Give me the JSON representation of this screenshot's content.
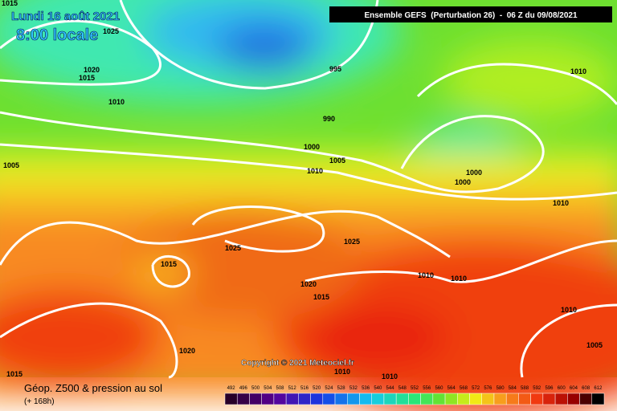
{
  "header": {
    "date": "Lundi 16 août 2021",
    "time": "8:00 locale",
    "run": "Ensemble GEFS  (Perturbation 26)  -  06 Z du 09/08/2021"
  },
  "copyright": "Copyright © 2021 Meteociel.fr",
  "footer": {
    "title": "Géop. Z500 & pression au sol",
    "lead": "(+ 168h)"
  },
  "isobar_labels": [
    "1015",
    "1025",
    "1020",
    "1015",
    "1010",
    "1005",
    "995",
    "990",
    "1000",
    "1005",
    "1010",
    "1000",
    "1000",
    "1010",
    "1010",
    "1025",
    "1025",
    "1015",
    "1020",
    "1015",
    "1010",
    "1010",
    "1010",
    "1005",
    "1020",
    "1010",
    "1010",
    "1015"
  ],
  "scale": [
    "492",
    "496",
    "500",
    "504",
    "508",
    "512",
    "516",
    "520",
    "524",
    "528",
    "532",
    "536",
    "540",
    "544",
    "548",
    "552",
    "556",
    "560",
    "564",
    "568",
    "572",
    "576",
    "580",
    "584",
    "588",
    "592",
    "596",
    "600",
    "604",
    "608",
    "612"
  ]
}
